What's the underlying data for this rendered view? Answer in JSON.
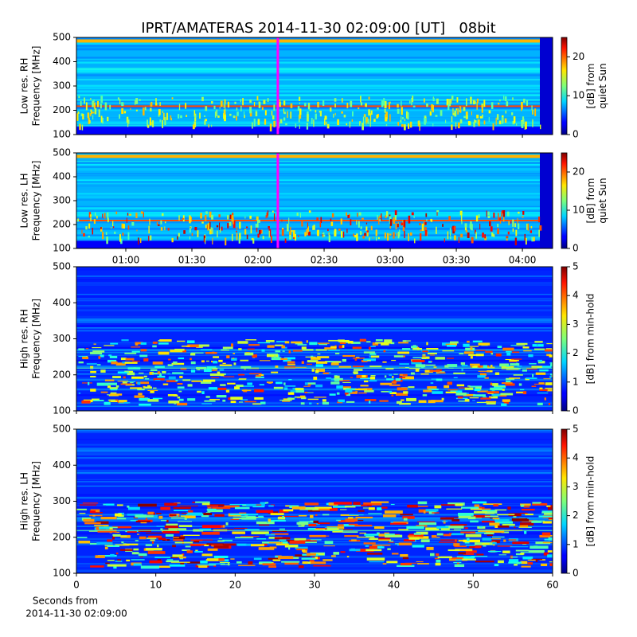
{
  "chart_data": {
    "type": "heatmap",
    "title": "IPRT/AMATERAS 2014-11-30 02:09:00 [UT]   08bit",
    "colormap": "jet",
    "panels": [
      {
        "ylabel": [
          "Low res. RH",
          "Frequency [MHz]"
        ],
        "ylim": [
          100,
          500
        ],
        "yticks": [
          100,
          200,
          300,
          400,
          500
        ],
        "xaxis": "time",
        "clabel": [
          "[dB] from",
          "quiet Sun"
        ],
        "clim": [
          0,
          25
        ],
        "cticks": [
          0,
          10,
          20
        ]
      },
      {
        "ylabel": [
          "Low res. LH",
          "Frequency [MHz]"
        ],
        "ylim": [
          100,
          500
        ],
        "yticks": [
          100,
          200,
          300,
          400,
          500
        ],
        "xaxis": "time",
        "clabel": [
          "[dB] from",
          "quiet Sun"
        ],
        "clim": [
          0,
          25
        ],
        "cticks": [
          0,
          10,
          20
        ]
      },
      {
        "ylabel": [
          "High res. RH",
          "Frequency [MHz]"
        ],
        "ylim": [
          100,
          500
        ],
        "yticks": [
          100,
          200,
          300,
          400,
          500
        ],
        "xaxis": "seconds",
        "clabel": [
          "[dB] from min-hold"
        ],
        "clim": [
          0,
          5
        ],
        "cticks": [
          0,
          1,
          2,
          3,
          4,
          5
        ]
      },
      {
        "ylabel": [
          "High res. LH",
          "Frequency [MHz]"
        ],
        "ylim": [
          100,
          500
        ],
        "yticks": [
          100,
          200,
          300,
          400,
          500
        ],
        "xaxis": "seconds",
        "clabel": [
          "[dB] from min-hold"
        ],
        "clim": [
          0,
          5
        ],
        "cticks": [
          0,
          1,
          2,
          3,
          4,
          5
        ]
      }
    ],
    "time_axis": {
      "xlim": [
        37.6,
        253.7
      ],
      "xticks": [
        {
          "value": 60,
          "label": "01:00"
        },
        {
          "value": 90,
          "label": "01:30"
        },
        {
          "value": 120,
          "label": "02:00"
        },
        {
          "value": 150,
          "label": "02:30"
        },
        {
          "value": 180,
          "label": "03:00"
        },
        {
          "value": 210,
          "label": "03:30"
        },
        {
          "value": 240,
          "label": "04:00"
        }
      ],
      "cursor": 129,
      "cursor_color": "#ff00ff"
    },
    "seconds_axis": {
      "xlim": [
        0,
        60
      ],
      "xticks": [
        0,
        10,
        20,
        30,
        40,
        50,
        60
      ],
      "xlabel": [
        "Seconds from",
        "2014-11-30 02:09:00"
      ]
    }
  }
}
